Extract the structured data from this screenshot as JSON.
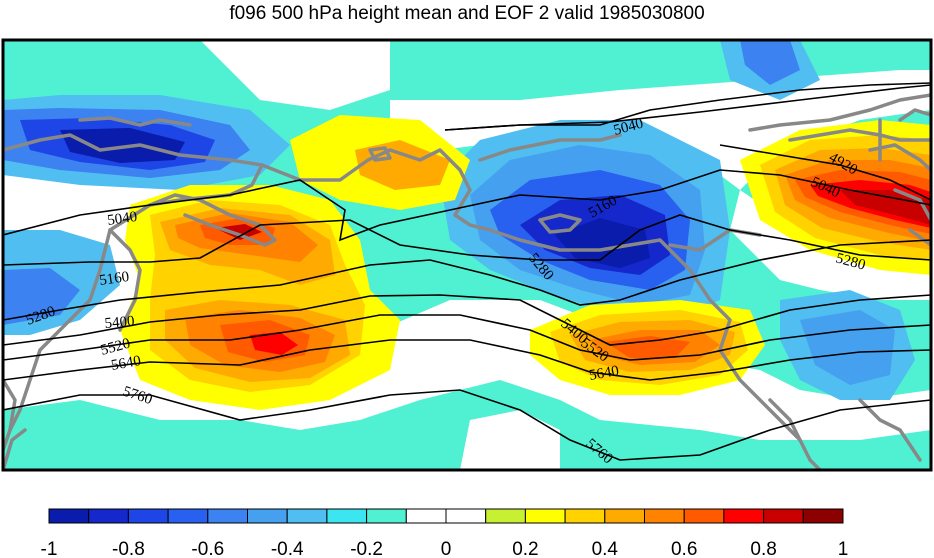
{
  "title": "f096 500 hPa height mean and EOF 2 valid 1985030800",
  "colorbar": {
    "colors": [
      "#0a1cab",
      "#1428cc",
      "#1e46e6",
      "#2860f0",
      "#3c82f0",
      "#46a0f0",
      "#50bef0",
      "#3ce6f0",
      "#50f0d2",
      "#ffffff",
      "#ffffff",
      "#c8f032",
      "#ffff00",
      "#ffd200",
      "#ffaa00",
      "#ff8200",
      "#ff5a00",
      "#ff0000",
      "#c80000",
      "#8c0000"
    ],
    "ticks": [
      "-1",
      "-0.8",
      "-0.6",
      "-0.4",
      "-0.2",
      "0",
      "0.2",
      "0.4",
      "0.6",
      "0.8",
      "1"
    ]
  },
  "contour_labels": [
    "5040",
    "5160",
    "5280",
    "5400",
    "5520",
    "5640",
    "5760",
    "5040",
    "4920",
    "5040",
    "5160",
    "5280",
    "5280",
    "5400",
    "5520",
    "5640",
    "5760"
  ],
  "colors": {
    "coast": "#888888",
    "contour": "#000000",
    "background_fill": "#50f0d2"
  }
}
